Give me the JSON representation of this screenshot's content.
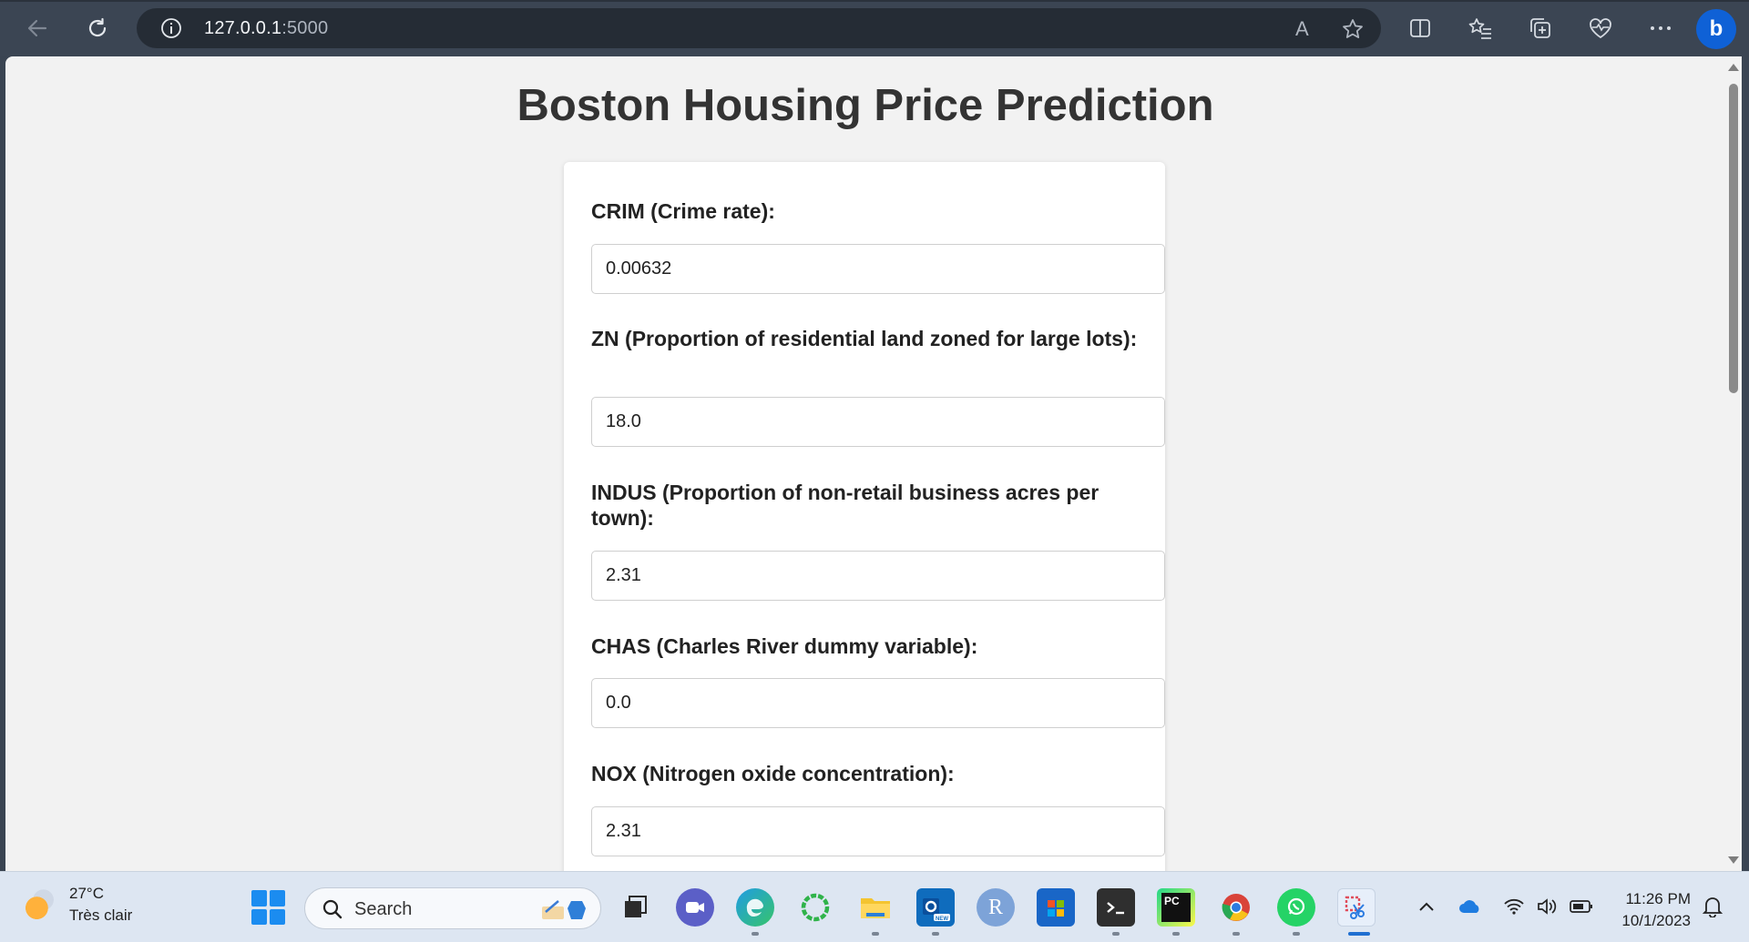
{
  "browser": {
    "url_host": "127.0.0.1",
    "url_port": ":5000",
    "read_aloud_label": "A"
  },
  "page": {
    "title": "Boston Housing Price Prediction",
    "fields": [
      {
        "label": "CRIM (Crime rate):",
        "value": "0.00632"
      },
      {
        "label": "ZN (Proportion of residential land zoned for large lots):",
        "value": "18.0"
      },
      {
        "label": "INDUS (Proportion of non-retail business acres per town):",
        "value": "2.31"
      },
      {
        "label": "CHAS (Charles River dummy variable):",
        "value": "0.0"
      },
      {
        "label": "NOX (Nitrogen oxide concentration):",
        "value": "2.31"
      }
    ]
  },
  "taskbar": {
    "weather": {
      "temp": "27°C",
      "condition": "Très clair"
    },
    "search_label": "Search",
    "apps": [
      {
        "icon": "task-view-icon",
        "color": "#2b2b2b"
      },
      {
        "icon": "teams-icon",
        "color": "#5b5fc7"
      },
      {
        "icon": "edge-icon",
        "color": "#1e8fd6"
      },
      {
        "icon": "copilot-ring-icon",
        "color": "#2fb34a"
      },
      {
        "icon": "file-explorer-icon",
        "color": "#f4c430"
      },
      {
        "icon": "outlook-new-icon",
        "color": "#0f6cbd"
      },
      {
        "icon": "r-icon",
        "color": "#7da3d8",
        "text": "R"
      },
      {
        "icon": "store-icon",
        "color": "#1966c7"
      },
      {
        "icon": "terminal-icon",
        "color": "#2f2f2f"
      },
      {
        "icon": "pycharm-icon",
        "color": "#111111",
        "text": "PC"
      },
      {
        "icon": "chrome-icon",
        "color": "#d9433a"
      },
      {
        "icon": "whatsapp-icon",
        "color": "#25d366"
      },
      {
        "icon": "snipping-tool-icon",
        "color": "#e7effa"
      }
    ],
    "clock": {
      "time": "11:26 PM",
      "date": "10/1/2023"
    }
  }
}
